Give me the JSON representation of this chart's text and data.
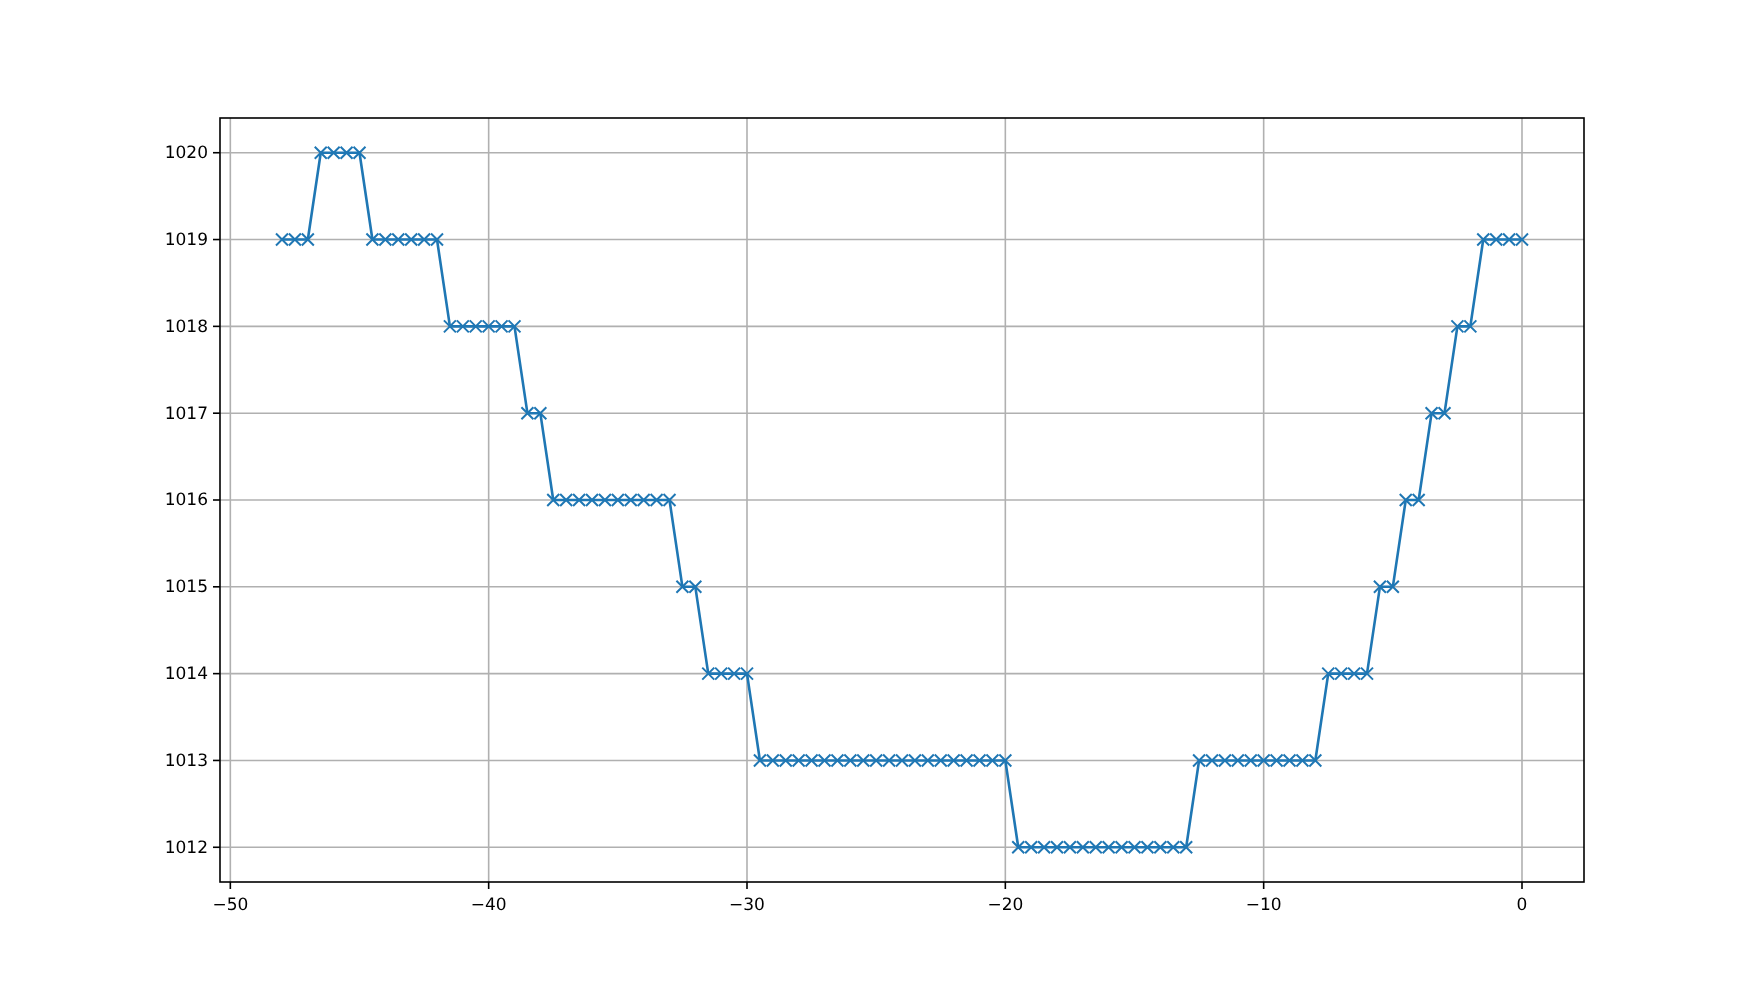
{
  "chart_data": {
    "type": "line",
    "x": [
      -48,
      -47.5,
      -47,
      -46.5,
      -46,
      -45.5,
      -45,
      -44.5,
      -44,
      -43.5,
      -43,
      -42.5,
      -42,
      -41.5,
      -41,
      -40.5,
      -40,
      -39.5,
      -39,
      -38.5,
      -38,
      -37.5,
      -37,
      -36.5,
      -36,
      -35.5,
      -35,
      -34.5,
      -34,
      -33.5,
      -33,
      -32.5,
      -32,
      -31.5,
      -31,
      -30.5,
      -30,
      -29.5,
      -29,
      -28.5,
      -28,
      -27.5,
      -27,
      -26.5,
      -26,
      -25.5,
      -25,
      -24.5,
      -24,
      -23.5,
      -23,
      -22.5,
      -22,
      -21.5,
      -21,
      -20.5,
      -20,
      -19.5,
      -19,
      -18.5,
      -18,
      -17.5,
      -17,
      -16.5,
      -16,
      -15.5,
      -15,
      -14.5,
      -14,
      -13.5,
      -13,
      -12.5,
      -12,
      -11.5,
      -11,
      -10.5,
      -10,
      -9.5,
      -9,
      -8.5,
      -8,
      -7.5,
      -7,
      -6.5,
      -6,
      -5.5,
      -5,
      -4.5,
      -4,
      -3.5,
      -3,
      -2.5,
      -2,
      -1.5,
      -1,
      -0.5,
      0
    ],
    "series": [
      {
        "color": "#1f77b4",
        "values": [
          1019,
          1019,
          1019,
          1020,
          1020,
          1020,
          1020,
          1019,
          1019,
          1019,
          1019,
          1019,
          1019,
          1018,
          1018,
          1018,
          1018,
          1018,
          1018,
          1017,
          1017,
          1016,
          1016,
          1016,
          1016,
          1016,
          1016,
          1016,
          1016,
          1016,
          1016,
          1015,
          1015,
          1014,
          1014,
          1014,
          1014,
          1013,
          1013,
          1013,
          1013,
          1013,
          1013,
          1013,
          1013,
          1013,
          1013,
          1013,
          1013,
          1013,
          1013,
          1013,
          1013,
          1013,
          1013,
          1013,
          1013,
          1012,
          1012,
          1012,
          1012,
          1012,
          1012,
          1012,
          1012,
          1012,
          1012,
          1012,
          1012,
          1012,
          1012,
          1013,
          1013,
          1013,
          1013,
          1013,
          1013,
          1013,
          1013,
          1013,
          1013,
          1014,
          1014,
          1014,
          1014,
          1015,
          1015,
          1016,
          1016,
          1017,
          1017,
          1018,
          1018,
          1019,
          1019,
          1019,
          1019
        ]
      }
    ],
    "xlim": [
      -50.4,
      2.4
    ],
    "ylim": [
      1011.6,
      1020.4
    ],
    "xticks": [
      -50,
      -40,
      -30,
      -20,
      -10,
      0
    ],
    "yticks": [
      1012,
      1013,
      1014,
      1015,
      1016,
      1017,
      1018,
      1019,
      1020
    ],
    "grid": true,
    "marker": "cross",
    "line_style": "solid"
  }
}
